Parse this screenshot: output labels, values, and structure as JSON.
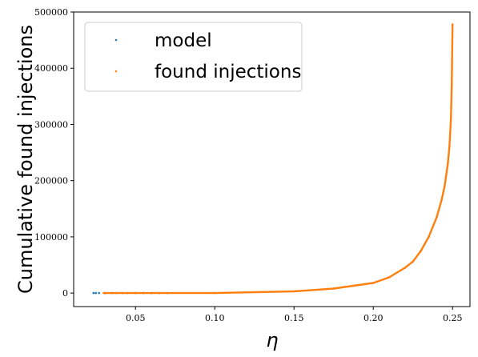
{
  "chart_data": {
    "type": "scatter",
    "xlabel": "η",
    "ylabel": "Cumulative found injections",
    "xlim": [
      0.011,
      0.261
    ],
    "ylim": [
      -24000,
      500000
    ],
    "x_ticks": [
      0.05,
      0.1,
      0.15,
      0.2,
      0.25
    ],
    "x_tick_labels": [
      "0.05",
      "0.10",
      "0.15",
      "0.20",
      "0.25"
    ],
    "y_ticks": [
      0,
      100000,
      200000,
      300000,
      400000,
      500000
    ],
    "y_tick_labels": [
      "0",
      "100000",
      "200000",
      "300000",
      "400000",
      "500000"
    ],
    "grid": false,
    "legend_position": "top-left",
    "series": [
      {
        "name": "model",
        "color": "#1f77b4",
        "x": [
          0.0235,
          0.025,
          0.027,
          0.031,
          0.035,
          0.038,
          0.042,
          0.045,
          0.05,
          0.055,
          0.06,
          0.065,
          0.07
        ],
        "y": [
          0,
          0,
          0,
          0,
          0,
          0,
          0,
          0,
          0,
          0,
          0,
          0,
          0
        ]
      },
      {
        "name": "found injections",
        "color": "#ff7f0e",
        "x": [
          0.03,
          0.05,
          0.1,
          0.15,
          0.175,
          0.2,
          0.21,
          0.22,
          0.225,
          0.23,
          0.235,
          0.24,
          0.243,
          0.245,
          0.247,
          0.248,
          0.249,
          0.2495,
          0.25
        ],
        "y": [
          0,
          0,
          0,
          3000,
          8000,
          18000,
          28000,
          45000,
          56000,
          75000,
          100000,
          135000,
          165000,
          190000,
          230000,
          260000,
          310000,
          370000,
          478000
        ]
      }
    ]
  }
}
